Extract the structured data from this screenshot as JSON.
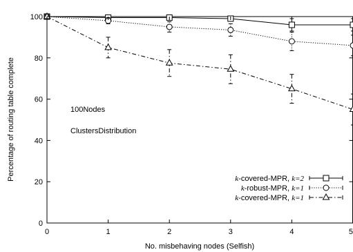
{
  "chart_data": {
    "type": "line",
    "title": "",
    "xlabel": "No. misbehaving nodes (Selfish)",
    "ylabel": "Percentage of routing table complete",
    "xlim": [
      0,
      5
    ],
    "ylim": [
      0,
      100
    ],
    "xticks": [
      "0",
      "1",
      "2",
      "3",
      "4",
      "5"
    ],
    "yticks": [
      "0",
      "20",
      "40",
      "60",
      "80",
      "100"
    ],
    "annotations": [
      "100Nodes",
      "ClustersDistribution"
    ],
    "legend_position": "bottom-right",
    "series": [
      {
        "name_prefix": "k",
        "name_rest": "-covered-MPR, ",
        "name_param": "k=2",
        "marker": "square",
        "dash": "solid",
        "x": [
          0,
          1,
          2,
          3,
          4,
          5
        ],
        "y": [
          100,
          99.5,
          99.5,
          99,
          96,
          96
        ],
        "err": [
          0.3,
          0.6,
          0.7,
          1.0,
          3.0,
          3.0
        ]
      },
      {
        "name_prefix": "k",
        "name_rest": "-robust-MPR, ",
        "name_param": "k=1",
        "marker": "circle",
        "dash": "dotted",
        "x": [
          0,
          1,
          2,
          3,
          4,
          5
        ],
        "y": [
          100,
          98,
          95,
          93.5,
          88,
          86
        ],
        "err": [
          0.3,
          1.5,
          2.5,
          3.0,
          4.5,
          5.0
        ]
      },
      {
        "name_prefix": "k",
        "name_rest": "-covered-MPR, ",
        "name_param": "k=1",
        "marker": "triangle",
        "dash": "dashdot",
        "x": [
          0,
          1,
          2,
          3,
          4,
          5
        ],
        "y": [
          100,
          85,
          77.5,
          74.5,
          65,
          55
        ],
        "err": [
          0.5,
          5.0,
          6.5,
          7.0,
          7.0,
          7.5
        ]
      }
    ]
  }
}
